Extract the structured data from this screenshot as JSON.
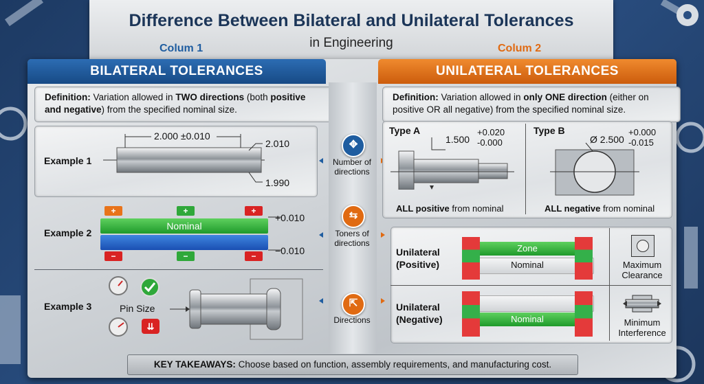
{
  "title": "Difference Between Bilateral and Unilateral Tolerances",
  "subtitle": "in Engineering",
  "col1_label": "Colum 1",
  "col2_label": "Colum 2",
  "left": {
    "header": "BILATERAL TOLERANCES",
    "def_bold": "Definition:",
    "def_a": " Variation allowed in ",
    "def_b": "TWO directions",
    "def_c": " (both ",
    "def_d": "positive and negative",
    "def_e": ") from the specified nominal size.",
    "ex1_label": "Example 1",
    "ex1_dim": "2.000 ±0.010",
    "ex1_upper": "2.010",
    "ex1_lower": "1.990",
    "ex2_label": "Example 2",
    "ex2_nominal": "Nominal",
    "ex2_plus": "+0.010",
    "ex2_minus": "−0.010",
    "ex2_plus_sign": "+",
    "ex2_minus_sign": "−",
    "ex3_label": "Example 3",
    "ex3_pin": "Pin Size"
  },
  "center": {
    "item1": "Number of directions",
    "item2": "Toners of directions",
    "item3": "Directions"
  },
  "right": {
    "header": "UNILATERAL TOLERANCES",
    "def_bold": "Definition:",
    "def_a": " Variation allowed in ",
    "def_b": "only ONE direction",
    "def_c": " (either on positive OR all negative) from the specified nominal size.",
    "typeA": "Type A",
    "typeA_nom": "1.500",
    "typeA_up": "+0.020",
    "typeA_low": "-0.000",
    "typeA_caption_b": "ALL positive",
    "typeA_caption": " from nominal",
    "typeB": "Type B",
    "typeB_nom": "Ø 2.500",
    "typeB_up": "+0.000",
    "typeB_low": "-0.015",
    "typeB_caption_b": "ALL negative",
    "typeB_caption": " from nominal",
    "pos_label": "Unilateral (Positive)",
    "neg_label": "Unilateral (Negative)",
    "zone": "Zone",
    "nominal": "Nominal",
    "max_clear": "Maximum Clearance",
    "min_interf": "Minimum Interference"
  },
  "takeaway_bold": "KEY TAKEAWAYS:",
  "takeaway": " Choose based on function, assembly requirements, and manufacturing cost.",
  "colors": {
    "blue": "#1f5da0",
    "orange": "#e06a12",
    "green": "#2fa83a",
    "red": "#d92323",
    "navy": "#1b3558"
  }
}
